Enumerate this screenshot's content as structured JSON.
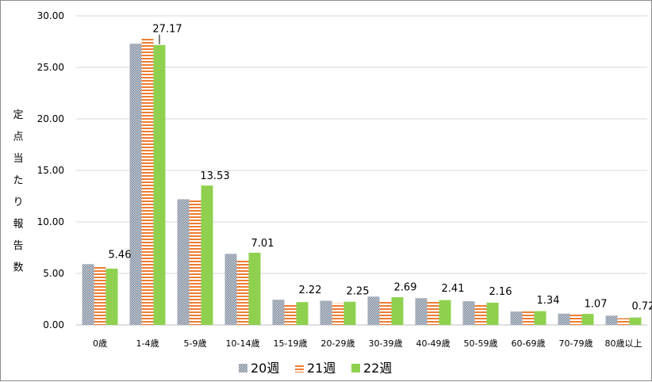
{
  "chart_data": {
    "type": "bar",
    "title": "",
    "ylabel": "定点当たり報告数",
    "xlabel": "",
    "ylim": [
      0,
      30
    ],
    "yticks": [
      "0.00",
      "5.00",
      "10.00",
      "15.00",
      "20.00",
      "25.00",
      "30.00"
    ],
    "categories": [
      "0歳",
      "1-4歳",
      "5-9歳",
      "10-14歳",
      "15-19歳",
      "20-29歳",
      "30-39歳",
      "40-49歳",
      "50-59歳",
      "60-69歳",
      "70-79歳",
      "80歳以上"
    ],
    "series": [
      {
        "name": "20週",
        "color": "#9aa5b5",
        "pattern": "checker",
        "values": [
          5.9,
          27.3,
          12.2,
          6.9,
          2.45,
          2.35,
          2.75,
          2.6,
          2.3,
          1.3,
          1.1,
          0.9
        ]
      },
      {
        "name": "21週",
        "color": "#ed7d31",
        "pattern": "stripes",
        "values": [
          5.7,
          27.8,
          12.1,
          6.3,
          2.05,
          2.1,
          2.3,
          2.35,
          2.0,
          1.45,
          1.1,
          0.65
        ]
      },
      {
        "name": "22週",
        "color": "#8fd14f",
        "pattern": "solid",
        "values": [
          5.46,
          27.17,
          13.53,
          7.01,
          2.22,
          2.25,
          2.69,
          2.41,
          2.16,
          1.34,
          1.07,
          0.72
        ]
      }
    ],
    "data_labels": [
      "5.46",
      "27.17",
      "13.53",
      "7.01",
      "2.22",
      "2.25",
      "2.69",
      "2.41",
      "2.16",
      "1.34",
      "1.07",
      "0.72"
    ],
    "legend_position": "bottom",
    "grid": true
  }
}
